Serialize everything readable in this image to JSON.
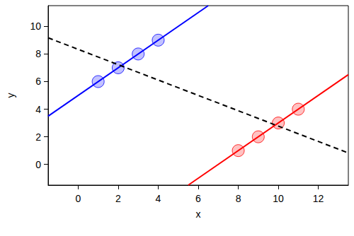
{
  "chart_data": {
    "type": "scatter",
    "xlabel": "x",
    "ylabel": "y",
    "xlim": [
      -1.5,
      13.5
    ],
    "ylim": [
      -1.5,
      11.5
    ],
    "xticks": [
      0,
      2,
      4,
      6,
      8,
      10,
      12
    ],
    "yticks": [
      0,
      2,
      4,
      6,
      8,
      10
    ],
    "grid": false,
    "series": [
      {
        "type": "scatter",
        "color": "#0000ff",
        "marker": "circle",
        "x": [
          1,
          2,
          3,
          4
        ],
        "values": [
          6,
          7,
          8,
          9
        ]
      },
      {
        "type": "scatter",
        "color": "#ff0000",
        "marker": "circle",
        "x": [
          8,
          9,
          10,
          11
        ],
        "values": [
          1,
          2,
          3,
          4
        ]
      },
      {
        "type": "line",
        "color": "#0000ff",
        "line_style": "solid",
        "x": [
          -1.5,
          6.5
        ],
        "values": [
          3.5,
          11.5
        ]
      },
      {
        "type": "line",
        "color": "#ff0000",
        "line_style": "solid",
        "x": [
          5.5,
          13.5
        ],
        "values": [
          -1.5,
          6.5
        ]
      },
      {
        "type": "line",
        "color": "#000000",
        "line_style": "dashed",
        "x": [
          -1.5,
          13.5
        ],
        "values": [
          9.17,
          0.83
        ]
      }
    ]
  }
}
